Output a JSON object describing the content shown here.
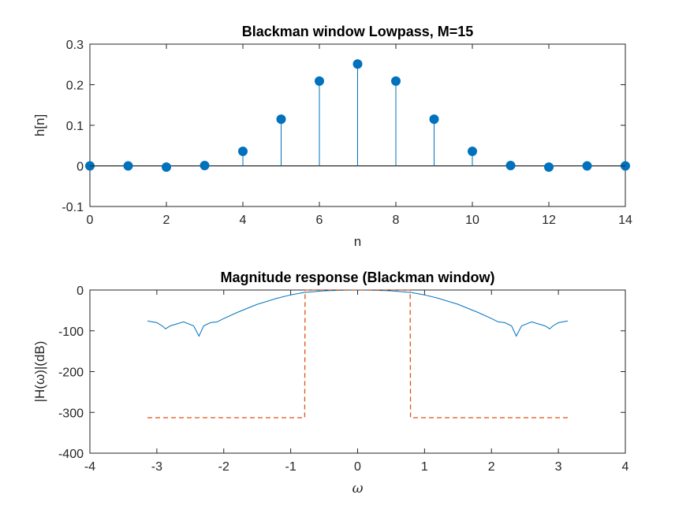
{
  "chart_data": [
    {
      "type": "stem",
      "title": "Blackman window Lowpass, M=15",
      "xlabel": "n",
      "ylabel": "h[n]",
      "xlim": [
        0,
        14
      ],
      "ylim": [
        -0.1,
        0.3
      ],
      "xticks": [
        0,
        2,
        4,
        6,
        8,
        10,
        12,
        14
      ],
      "yticks": [
        -0.1,
        0,
        0.1,
        0.2,
        0.3
      ],
      "ytick_labels": [
        "-0.1",
        "0",
        "0.1",
        "0.2",
        "0.3"
      ],
      "grid": false,
      "color": "#0072BD",
      "x": [
        0,
        1,
        2,
        3,
        4,
        5,
        6,
        7,
        8,
        9,
        10,
        11,
        12,
        13,
        14
      ],
      "values": [
        0.0,
        0.0,
        -0.003,
        0.001,
        0.036,
        0.115,
        0.209,
        0.251,
        0.209,
        0.115,
        0.036,
        0.001,
        -0.003,
        0.0,
        0.0
      ]
    },
    {
      "type": "line",
      "title": "Magnitude response (Blackman window)",
      "xlabel": "ω",
      "ylabel": "|H(ω)|(dB)",
      "xlim": [
        -4,
        4
      ],
      "ylim": [
        -400,
        0
      ],
      "xticks": [
        -4,
        -3,
        -2,
        -1,
        0,
        1,
        2,
        3,
        4
      ],
      "yticks": [
        -400,
        -300,
        -200,
        -100,
        0
      ],
      "ytick_labels": [
        "-400",
        "-300",
        "-200",
        "-100",
        "0"
      ],
      "grid": false,
      "series": [
        {
          "color": "#0072BD",
          "style": "solid",
          "x": [
            -3.14,
            -3.0,
            -2.92,
            -2.87,
            -2.8,
            -2.6,
            -2.45,
            -2.37,
            -2.3,
            -2.2,
            -2.1,
            -2.0,
            -1.8,
            -1.5,
            -1.2,
            -1.0,
            -0.8,
            -0.5,
            -0.2,
            0,
            0.2,
            0.5,
            0.8,
            1.0,
            1.2,
            1.5,
            1.8,
            2.0,
            2.1,
            2.2,
            2.3,
            2.37,
            2.45,
            2.6,
            2.8,
            2.87,
            2.92,
            3.0,
            3.14
          ],
          "y": [
            -76,
            -80,
            -88,
            -95,
            -88,
            -78,
            -88,
            -113,
            -88,
            -80,
            -78,
            -70,
            -55,
            -35,
            -20,
            -12,
            -6,
            -2,
            -0.5,
            0,
            -0.5,
            -2,
            -6,
            -12,
            -20,
            -35,
            -55,
            -70,
            -78,
            -80,
            -88,
            -113,
            -88,
            -78,
            -88,
            -95,
            -88,
            -80,
            -76
          ]
        },
        {
          "color": "#D95319",
          "style": "dashed",
          "x": [
            -3.14,
            -0.79,
            -0.785,
            0.785,
            0.79,
            3.14
          ],
          "y": [
            -313,
            -313,
            0,
            0,
            -313,
            -313
          ]
        }
      ]
    }
  ]
}
